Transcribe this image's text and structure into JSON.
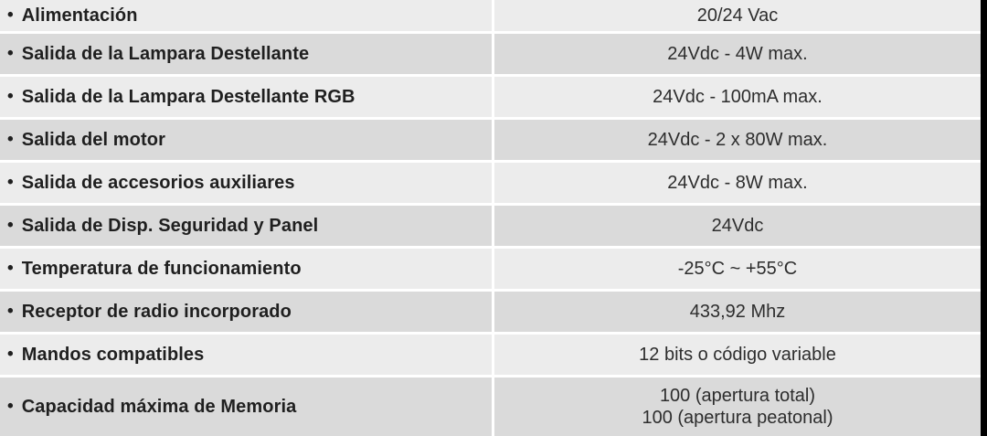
{
  "table": {
    "bullet": "•",
    "rows": [
      {
        "label": "Alimentación",
        "value_lines": [
          "20/24 Vac"
        ]
      },
      {
        "label": "Salida de la Lampara Destellante",
        "value_lines": [
          "24Vdc - 4W max."
        ]
      },
      {
        "label": "Salida de la Lampara Destellante RGB",
        "value_lines": [
          "24Vdc - 100mA max."
        ]
      },
      {
        "label": "Salida del motor",
        "value_lines": [
          "24Vdc - 2 x 80W max."
        ]
      },
      {
        "label": "Salida de accesorios auxiliares",
        "value_lines": [
          "24Vdc - 8W max."
        ]
      },
      {
        "label": "Salida de Disp. Seguridad y Panel",
        "value_lines": [
          "24Vdc"
        ]
      },
      {
        "label": "Temperatura de funcionamiento",
        "value_lines": [
          "-25°C ~ +55°C"
        ]
      },
      {
        "label": "Receptor de radio incorporado",
        "value_lines": [
          "433,92 Mhz"
        ]
      },
      {
        "label": "Mandos compatibles",
        "value_lines": [
          "12 bits o código variable"
        ]
      },
      {
        "label": "Capacidad máxima de Memoria",
        "value_lines": [
          "100 (apertura total)",
          "100 (apertura peatonal)"
        ]
      }
    ],
    "colors": {
      "row_light": "#ececec",
      "row_dark": "#dadada",
      "separator": "#ffffff",
      "text": "#1f1f1f",
      "text_value": "#2d2d2d",
      "edge_bar": "#000000"
    }
  }
}
